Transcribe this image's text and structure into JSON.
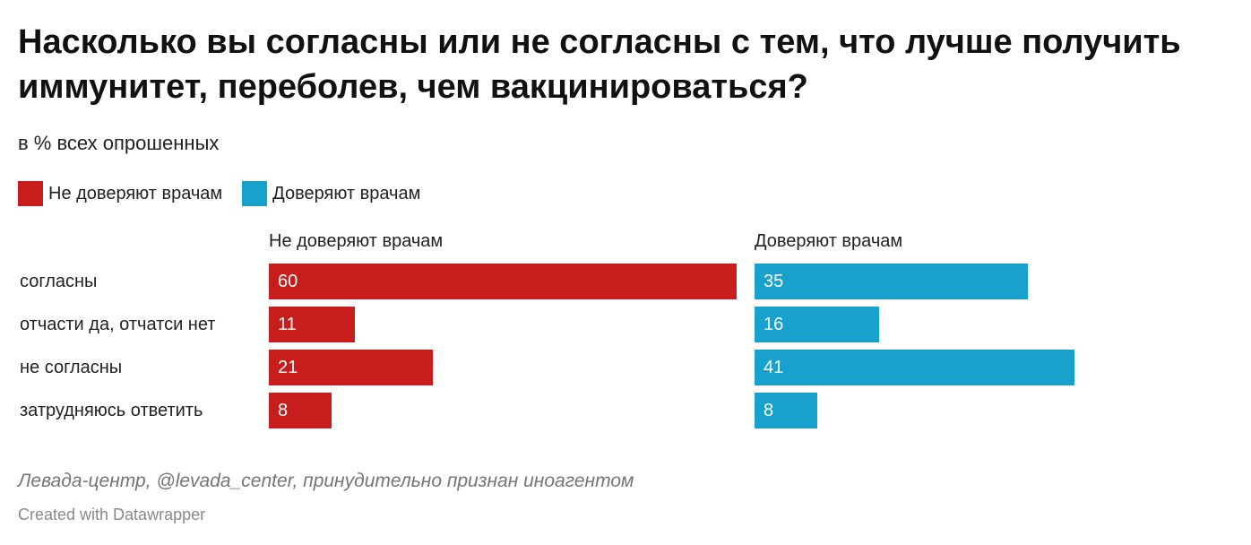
{
  "title": "Насколько вы согласны или не согласны с тем, что лучше получить иммунитет, переболев, чем вакцинироваться?",
  "subtitle": "в % всех опрошенных",
  "legend": [
    {
      "label": "Не доверяют врачам",
      "color": "#c71e1d"
    },
    {
      "label": "Доверяют врачам",
      "color": "#18a1cd"
    }
  ],
  "chart_data": {
    "type": "bar",
    "title": "Насколько вы согласны или не согласны с тем, что лучше получить иммунитет, переболев, чем вакцинироваться?",
    "subtitle": "в % всех опрошенных",
    "categories": [
      "согласны",
      "отчасти да, отчатси нет",
      "не согласны",
      "затрудняюсь ответить"
    ],
    "series": [
      {
        "name": "Не доверяют врачам",
        "color": "#c71e1d",
        "values": [
          60,
          11,
          21,
          8
        ]
      },
      {
        "name": "Доверяют врачам",
        "color": "#18a1cd",
        "values": [
          35,
          16,
          41,
          8
        ]
      }
    ],
    "xlim": [
      0,
      60
    ],
    "legend_position": "top-left",
    "grid": false
  },
  "footer": {
    "source": "Левада-центр, @levada_center, принудительно признан иноагентом",
    "credit": "Created with Datawrapper"
  }
}
